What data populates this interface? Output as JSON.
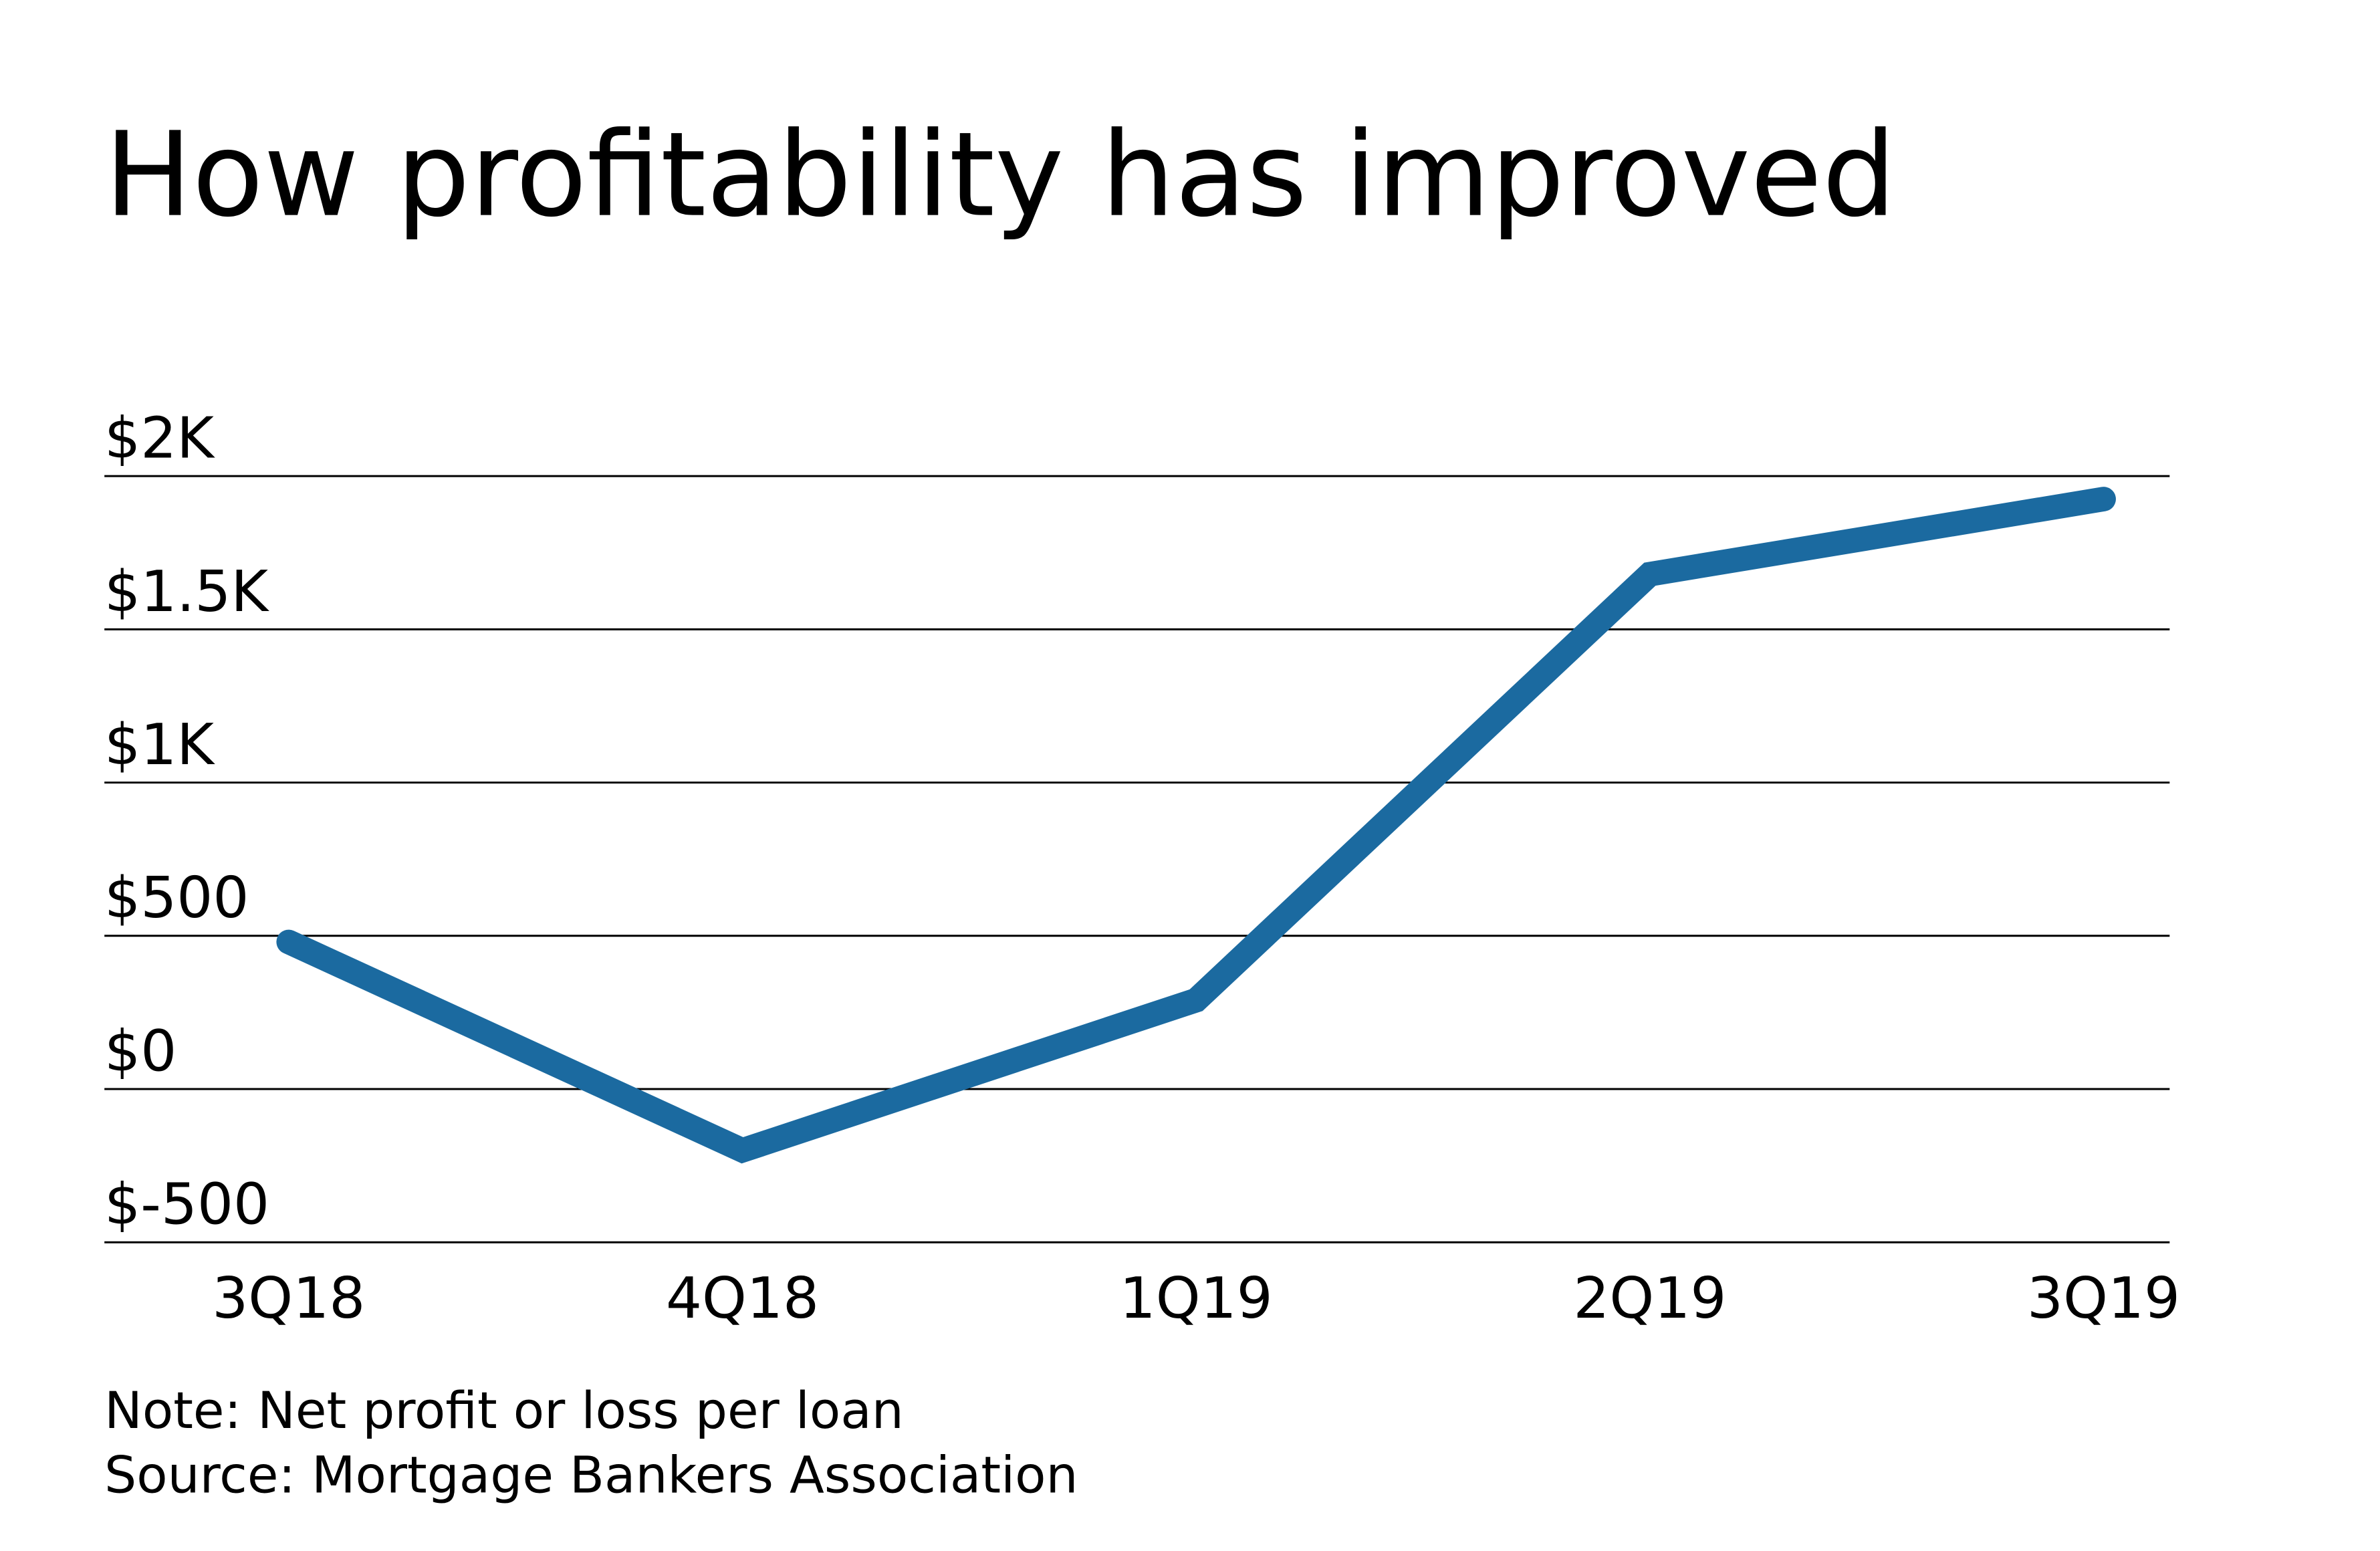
{
  "chart_data": {
    "type": "line",
    "title": "How profitability has improved",
    "categories": [
      "3Q18",
      "4Q18",
      "1Q19",
      "2Q19",
      "3Q19"
    ],
    "values": [
      480,
      -200,
      290,
      1680,
      1925
    ],
    "ylim": [
      -500,
      2000
    ],
    "yticks": [
      -500,
      0,
      500,
      1000,
      1500,
      2000
    ],
    "ytick_labels": [
      "$-500",
      "$0",
      "$500",
      "$1K",
      "$1.5K",
      "$2K"
    ],
    "grid": "horizontal",
    "line_color": "#1b6aa0",
    "note": "Note: Net profit or loss per loan",
    "source": "Source: Mortgage Bankers Association"
  }
}
